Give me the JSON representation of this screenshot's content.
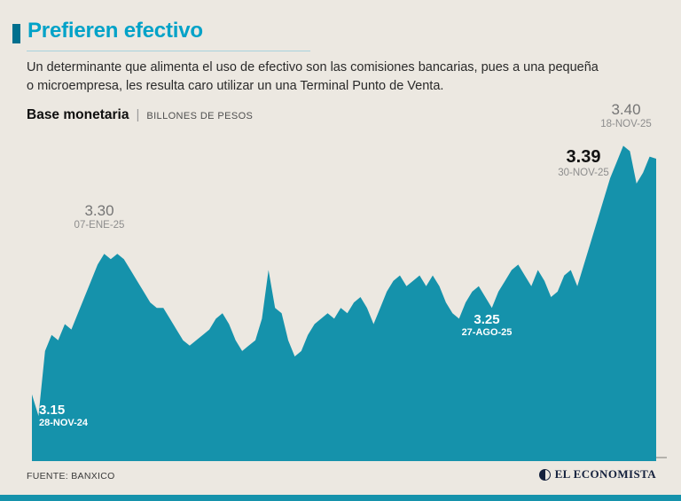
{
  "header": {
    "title": "Prefieren efectivo",
    "description": "Un determinante que alimenta el uso de efectivo son las comisiones bancarias, pues a una pequeña o microempresa, les resulta caro utilizar un una Terminal Punto de Venta.",
    "series_label": "Base monetaria",
    "series_separator": "|",
    "series_units": "BILLONES DE PESOS"
  },
  "footer": {
    "source": "FUENTE: BANXICO",
    "brand": "EL ECONOMISTA"
  },
  "colors": {
    "background": "#ece8e1",
    "title_cyan": "#00a2c8",
    "marker_teal": "#00708e",
    "area_teal": "#1592ab",
    "bottom_bar_teal": "#1592ab"
  },
  "chart_data": {
    "type": "area",
    "title": "Base monetaria",
    "ylabel": "Billones de pesos",
    "x_start": "28-NOV-24",
    "x_end": "30-NOV-25",
    "ylim": [
      3.1,
      3.42
    ],
    "grid": false,
    "legend": "none",
    "annotations": [
      {
        "value": "3.30",
        "date": "07-ENE-25",
        "style": "gray"
      },
      {
        "value": "3.40",
        "date": "18-NOV-25",
        "style": "gray"
      },
      {
        "value": "3.39",
        "date": "30-NOV-25",
        "style": "black-bold"
      },
      {
        "value": "3.15",
        "date": "28-NOV-24",
        "style": "white-bold"
      },
      {
        "value": "3.25",
        "date": "27-AGO-25",
        "style": "white-bold"
      }
    ],
    "values": [
      3.17,
      3.15,
      3.21,
      3.225,
      3.22,
      3.235,
      3.23,
      3.245,
      3.26,
      3.275,
      3.29,
      3.3,
      3.295,
      3.3,
      3.295,
      3.285,
      3.275,
      3.265,
      3.255,
      3.25,
      3.25,
      3.24,
      3.23,
      3.22,
      3.215,
      3.22,
      3.225,
      3.23,
      3.24,
      3.245,
      3.235,
      3.22,
      3.21,
      3.215,
      3.22,
      3.24,
      3.285,
      3.25,
      3.245,
      3.22,
      3.205,
      3.21,
      3.225,
      3.235,
      3.24,
      3.245,
      3.24,
      3.25,
      3.245,
      3.255,
      3.26,
      3.25,
      3.235,
      3.25,
      3.265,
      3.275,
      3.28,
      3.27,
      3.275,
      3.28,
      3.27,
      3.28,
      3.27,
      3.255,
      3.245,
      3.24,
      3.255,
      3.265,
      3.27,
      3.26,
      3.25,
      3.265,
      3.275,
      3.285,
      3.29,
      3.28,
      3.27,
      3.285,
      3.275,
      3.26,
      3.265,
      3.28,
      3.285,
      3.27,
      3.29,
      3.31,
      3.33,
      3.35,
      3.37,
      3.385,
      3.4,
      3.395,
      3.365,
      3.375,
      3.39,
      3.388
    ]
  }
}
